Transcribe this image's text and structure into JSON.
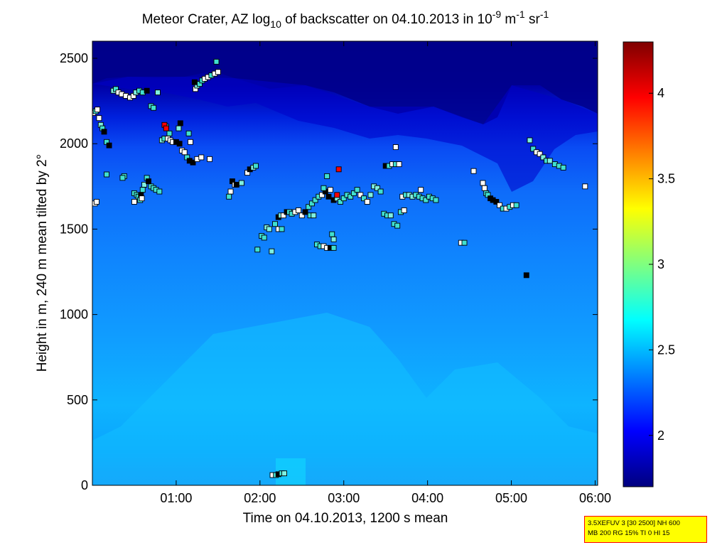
{
  "chart_data": {
    "type": "heatmap",
    "title": {
      "pre": "Meteor Crater, AZ log",
      "sub": "10",
      "mid": " of backscatter on 04.10.2013 in 10",
      "sup1": "-9",
      "mid2": " m",
      "sup2": "-1",
      "mid3": " sr",
      "sup3": "-1"
    },
    "xlabel": "Time on 04.10.2013, 1200 s mean",
    "ylabel": "Height in m, 240 m mean tilted by 2°",
    "x_range_hours": [
      0,
      6.03
    ],
    "ylim": [
      0,
      2600
    ],
    "x_ticks": [
      {
        "hour": 1,
        "label": "01:00"
      },
      {
        "hour": 2,
        "label": "02:00"
      },
      {
        "hour": 3,
        "label": "03:00"
      },
      {
        "hour": 4,
        "label": "04:00"
      },
      {
        "hour": 5,
        "label": "05:00"
      },
      {
        "hour": 6,
        "label": "06:00"
      }
    ],
    "y_ticks": [
      {
        "value": 0,
        "label": "0"
      },
      {
        "value": 500,
        "label": "500"
      },
      {
        "value": 1000,
        "label": "1000"
      },
      {
        "value": 1500,
        "label": "1500"
      },
      {
        "value": 2000,
        "label": "2000"
      },
      {
        "value": 2500,
        "label": "2500"
      }
    ],
    "colorbar": {
      "colormap": "jet",
      "range": [
        1.7,
        4.3
      ],
      "ticks": [
        {
          "value": 2,
          "label": "2"
        },
        {
          "value": 2.5,
          "label": "2.5"
        },
        {
          "value": 3,
          "label": "3"
        },
        {
          "value": 3.5,
          "label": "3.5"
        },
        {
          "value": 4,
          "label": "4"
        }
      ]
    },
    "field_description": "log10 backscatter ~2.3-2.6 near ground, ~2.4 mid-levels, decreasing to ~1.8 above a boundary near 2200 m early and 1700-2000 m later",
    "layer_heights": {
      "name": "detected layer heights",
      "points": [
        [
          0.01,
          2180
        ],
        [
          0.04,
          2190
        ],
        [
          0.06,
          2200
        ],
        [
          0.08,
          2150
        ],
        [
          0.1,
          2110
        ],
        [
          0.12,
          2090
        ],
        [
          0.14,
          2070
        ],
        [
          0.17,
          2010
        ],
        [
          0.2,
          1990
        ],
        [
          0.03,
          1650
        ],
        [
          0.05,
          1660
        ],
        [
          0.17,
          1820
        ],
        [
          0.38,
          1810
        ],
        [
          0.36,
          1800
        ],
        [
          0.25,
          2310
        ],
        [
          0.28,
          2320
        ],
        [
          0.31,
          2300
        ],
        [
          0.35,
          2290
        ],
        [
          0.4,
          2280
        ],
        [
          0.45,
          2270
        ],
        [
          0.49,
          2280
        ],
        [
          0.52,
          2300
        ],
        [
          0.56,
          2310
        ],
        [
          0.6,
          2300
        ],
        [
          0.65,
          2310
        ],
        [
          0.7,
          2220
        ],
        [
          0.73,
          2210
        ],
        [
          0.78,
          2300
        ],
        [
          0.5,
          1710
        ],
        [
          0.53,
          1700
        ],
        [
          0.55,
          1690
        ],
        [
          0.58,
          1700
        ],
        [
          0.6,
          1730
        ],
        [
          0.62,
          1760
        ],
        [
          0.65,
          1800
        ],
        [
          0.67,
          1780
        ],
        [
          0.7,
          1750
        ],
        [
          0.73,
          1740
        ],
        [
          0.76,
          1730
        ],
        [
          0.8,
          1720
        ],
        [
          0.5,
          1660
        ],
        [
          0.57,
          1670
        ],
        [
          0.59,
          1680
        ],
        [
          0.83,
          2020
        ],
        [
          0.86,
          2030
        ],
        [
          0.9,
          2030
        ],
        [
          0.93,
          2020
        ],
        [
          0.96,
          2010
        ],
        [
          1.0,
          2010
        ],
        [
          1.04,
          2000
        ],
        [
          1.07,
          1960
        ],
        [
          1.1,
          1950
        ],
        [
          1.13,
          1920
        ],
        [
          1.16,
          1900
        ],
        [
          1.2,
          1890
        ],
        [
          1.25,
          1910
        ],
        [
          1.3,
          1920
        ],
        [
          1.4,
          1910
        ],
        [
          0.88,
          2100
        ],
        [
          0.92,
          2060
        ],
        [
          1.03,
          2090
        ],
        [
          1.05,
          2120
        ],
        [
          1.15,
          2060
        ],
        [
          1.17,
          2010
        ],
        [
          1.23,
          2320
        ],
        [
          1.25,
          2340
        ],
        [
          1.28,
          2350
        ],
        [
          1.31,
          2370
        ],
        [
          1.34,
          2380
        ],
        [
          1.38,
          2390
        ],
        [
          1.42,
          2400
        ],
        [
          1.46,
          2410
        ],
        [
          1.5,
          2420
        ],
        [
          1.22,
          2360
        ],
        [
          1.48,
          2480
        ],
        [
          1.63,
          1690
        ],
        [
          1.65,
          1720
        ],
        [
          1.67,
          1780
        ],
        [
          1.7,
          1760
        ],
        [
          1.72,
          1760
        ],
        [
          1.78,
          1770
        ],
        [
          1.85,
          1830
        ],
        [
          1.88,
          1850
        ],
        [
          1.92,
          1860
        ],
        [
          1.95,
          1870
        ],
        [
          1.97,
          1380
        ],
        [
          2.02,
          1460
        ],
        [
          2.05,
          1450
        ],
        [
          2.08,
          1510
        ],
        [
          2.11,
          1500
        ],
        [
          2.14,
          1370
        ],
        [
          2.18,
          1530
        ],
        [
          2.22,
          1570
        ],
        [
          2.25,
          1580
        ],
        [
          2.28,
          1580
        ],
        [
          2.32,
          1600
        ],
        [
          2.35,
          1600
        ],
        [
          2.38,
          1590
        ],
        [
          2.42,
          1600
        ],
        [
          2.46,
          1610
        ],
        [
          2.5,
          1580
        ],
        [
          2.54,
          1600
        ],
        [
          2.58,
          1630
        ],
        [
          2.62,
          1650
        ],
        [
          2.66,
          1670
        ],
        [
          2.7,
          1690
        ],
        [
          2.74,
          1700
        ],
        [
          2.78,
          1720
        ],
        [
          2.22,
          1500
        ],
        [
          2.26,
          1500
        ],
        [
          2.6,
          1580
        ],
        [
          2.64,
          1580
        ],
        [
          2.68,
          1410
        ],
        [
          2.72,
          1400
        ],
        [
          2.76,
          1400
        ],
        [
          2.8,
          1390
        ],
        [
          2.84,
          1390
        ],
        [
          2.88,
          1390
        ],
        [
          2.86,
          1470
        ],
        [
          2.88,
          1440
        ],
        [
          2.8,
          1810
        ],
        [
          2.76,
          1740
        ],
        [
          2.82,
          1690
        ],
        [
          2.84,
          1730
        ],
        [
          2.88,
          1670
        ],
        [
          2.92,
          1680
        ],
        [
          2.96,
          1660
        ],
        [
          3.0,
          1680
        ],
        [
          3.04,
          1700
        ],
        [
          3.08,
          1690
        ],
        [
          3.12,
          1710
        ],
        [
          3.16,
          1730
        ],
        [
          3.2,
          1700
        ],
        [
          3.24,
          1680
        ],
        [
          3.28,
          1660
        ],
        [
          3.32,
          1700
        ],
        [
          3.36,
          1750
        ],
        [
          3.4,
          1740
        ],
        [
          3.44,
          1720
        ],
        [
          3.48,
          1590
        ],
        [
          3.52,
          1580
        ],
        [
          3.56,
          1580
        ],
        [
          3.6,
          1530
        ],
        [
          3.64,
          1520
        ],
        [
          3.68,
          1600
        ],
        [
          3.72,
          1610
        ],
        [
          3.5,
          1870
        ],
        [
          3.54,
          1870
        ],
        [
          3.58,
          1880
        ],
        [
          3.62,
          1880
        ],
        [
          3.66,
          1880
        ],
        [
          3.7,
          1690
        ],
        [
          3.74,
          1700
        ],
        [
          3.78,
          1700
        ],
        [
          3.82,
          1690
        ],
        [
          3.86,
          1700
        ],
        [
          3.9,
          1690
        ],
        [
          3.94,
          1680
        ],
        [
          3.98,
          1670
        ],
        [
          4.02,
          1690
        ],
        [
          4.06,
          1680
        ],
        [
          4.1,
          1670
        ],
        [
          3.62,
          1980
        ],
        [
          3.92,
          1730
        ],
        [
          4.4,
          1420
        ],
        [
          4.44,
          1420
        ],
        [
          4.55,
          1840
        ],
        [
          4.66,
          1770
        ],
        [
          4.68,
          1740
        ],
        [
          4.7,
          1710
        ],
        [
          4.72,
          1700
        ],
        [
          4.75,
          1680
        ],
        [
          4.78,
          1670
        ],
        [
          4.82,
          1660
        ],
        [
          4.86,
          1640
        ],
        [
          4.9,
          1620
        ],
        [
          4.94,
          1620
        ],
        [
          4.98,
          1630
        ],
        [
          5.02,
          1640
        ],
        [
          5.06,
          1640
        ],
        [
          5.18,
          1230
        ],
        [
          5.22,
          2020
        ],
        [
          5.26,
          1970
        ],
        [
          5.3,
          1950
        ],
        [
          5.34,
          1940
        ],
        [
          5.38,
          1920
        ],
        [
          5.42,
          1900
        ],
        [
          5.46,
          1900
        ],
        [
          5.52,
          1880
        ],
        [
          5.57,
          1870
        ],
        [
          5.62,
          1860
        ],
        [
          5.88,
          1750
        ],
        [
          2.15,
          60
        ],
        [
          2.19,
          60
        ],
        [
          2.22,
          65
        ],
        [
          2.26,
          70
        ],
        [
          2.29,
          70
        ]
      ]
    },
    "red_points": {
      "name": "high-value points",
      "points": [
        [
          0.86,
          2110
        ],
        [
          0.88,
          2090
        ],
        [
          2.92,
          1700
        ],
        [
          2.94,
          1850
        ]
      ]
    }
  },
  "annotation": {
    "line1": "3.5XEFUV 3 [30 2500] NH 600",
    "line2": "MB 200 RG 15% TI 0 HI 15"
  }
}
